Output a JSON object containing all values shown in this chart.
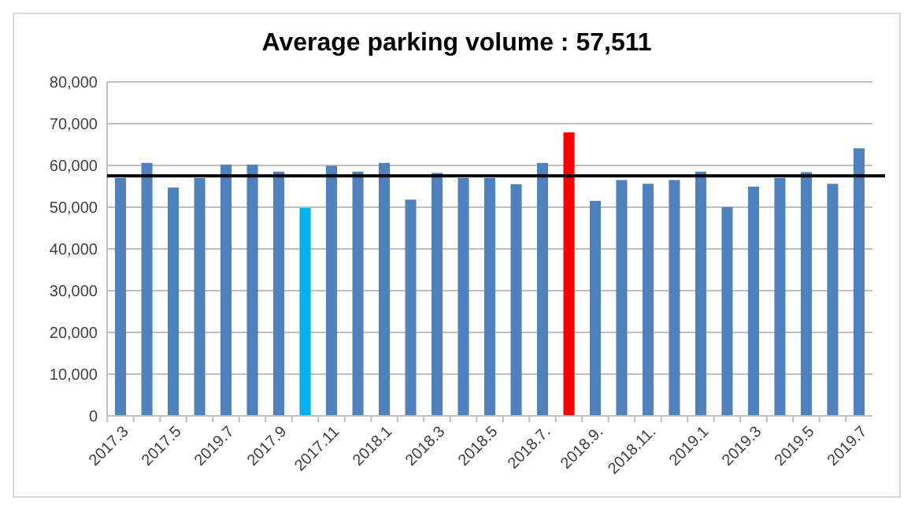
{
  "chart_data": {
    "type": "bar",
    "title": "Average parking volume :  57,511",
    "categories": [
      "2017.3",
      null,
      "2017.5",
      null,
      "2019.7",
      null,
      "2017.9",
      null,
      "2017.11",
      null,
      "2018.1",
      null,
      "2018.3",
      null,
      "2018.5",
      null,
      "2018.7.",
      null,
      "2018.9.",
      null,
      "2018.11.",
      null,
      "2019.1",
      null,
      "2019.3",
      null,
      "2019.5",
      null,
      "2019.7"
    ],
    "values": [
      57000,
      60600,
      54700,
      57000,
      60200,
      60200,
      58500,
      49800,
      59900,
      58500,
      60600,
      51800,
      58200,
      57000,
      57000,
      55500,
      60600,
      67900,
      51500,
      56500,
      55600,
      56500,
      58500,
      50000,
      54900,
      57000,
      58400,
      55600,
      64100
    ],
    "colors": [
      "#4f81bd",
      "#4f81bd",
      "#4f81bd",
      "#4f81bd",
      "#4f81bd",
      "#4f81bd",
      "#4f81bd",
      "#00b0f0",
      "#4f81bd",
      "#4f81bd",
      "#4f81bd",
      "#4f81bd",
      "#4f81bd",
      "#4f81bd",
      "#4f81bd",
      "#4f81bd",
      "#4f81bd",
      "#ff0000",
      "#4f81bd",
      "#4f81bd",
      "#4f81bd",
      "#4f81bd",
      "#4f81bd",
      "#4f81bd",
      "#4f81bd",
      "#4f81bd",
      "#4f81bd",
      "#4f81bd",
      "#4f81bd"
    ],
    "ylim": [
      0,
      80000
    ],
    "yticks": [
      {
        "value": 0,
        "label": "0"
      },
      {
        "value": 10000,
        "label": "10,000"
      },
      {
        "value": 20000,
        "label": "20,000"
      },
      {
        "value": 30000,
        "label": "30,000"
      },
      {
        "value": 40000,
        "label": "40,000"
      },
      {
        "value": 50000,
        "label": "50,000"
      },
      {
        "value": 60000,
        "label": "60,000"
      },
      {
        "value": 70000,
        "label": "70,000"
      },
      {
        "value": 80000,
        "label": "80,000"
      }
    ],
    "grid": "y",
    "ref_lines": [
      {
        "axis": "y",
        "value": 57511,
        "color": "#000000"
      }
    ]
  }
}
